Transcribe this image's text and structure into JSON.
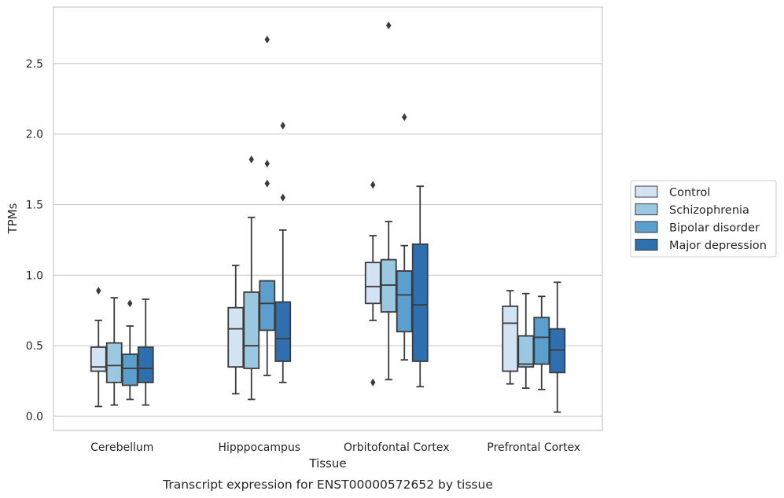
{
  "chart_data": {
    "type": "boxplot",
    "title": "",
    "caption": "Transcript expression for ENST00000572652 by tissue",
    "xlabel": "Tissue",
    "ylabel": "TPMs",
    "ylim": [
      -0.1,
      2.9
    ],
    "yticks": [
      0.0,
      0.5,
      1.0,
      1.5,
      2.0,
      2.5
    ],
    "ytick_labels": [
      "0.0",
      "0.5",
      "1.0",
      "1.5",
      "2.0",
      "2.5"
    ],
    "grid": "horizontal",
    "legend_position": "right",
    "categories": [
      "Cerebellum",
      "Hipppocampus",
      "Orbitofontal Cortex",
      "Prefrontal Cortex"
    ],
    "series": [
      {
        "name": "Control",
        "color": "#d2e3f3",
        "boxes": [
          {
            "whisker_low": 0.07,
            "q1": 0.32,
            "median": 0.35,
            "q3": 0.49,
            "whisker_high": 0.68,
            "outliers": [
              0.89
            ]
          },
          {
            "whisker_low": 0.16,
            "q1": 0.35,
            "median": 0.62,
            "q3": 0.77,
            "whisker_high": 1.07,
            "outliers": []
          },
          {
            "whisker_low": 0.68,
            "q1": 0.8,
            "median": 0.92,
            "q3": 1.09,
            "whisker_high": 1.28,
            "outliers": [
              1.64,
              0.24
            ]
          },
          {
            "whisker_low": 0.23,
            "q1": 0.32,
            "median": 0.66,
            "q3": 0.78,
            "whisker_high": 0.89,
            "outliers": []
          }
        ]
      },
      {
        "name": "Schizophrenia",
        "color": "#9ac8e0",
        "boxes": [
          {
            "whisker_low": 0.08,
            "q1": 0.24,
            "median": 0.36,
            "q3": 0.52,
            "whisker_high": 0.84,
            "outliers": []
          },
          {
            "whisker_low": 0.12,
            "q1": 0.34,
            "median": 0.5,
            "q3": 0.88,
            "whisker_high": 1.41,
            "outliers": [
              1.82
            ]
          },
          {
            "whisker_low": 0.26,
            "q1": 0.74,
            "median": 0.93,
            "q3": 1.11,
            "whisker_high": 1.38,
            "outliers": [
              2.77
            ]
          },
          {
            "whisker_low": 0.2,
            "q1": 0.35,
            "median": 0.37,
            "q3": 0.57,
            "whisker_high": 0.87,
            "outliers": []
          }
        ]
      },
      {
        "name": "Bipolar disorder",
        "color": "#5a9fcd",
        "boxes": [
          {
            "whisker_low": 0.12,
            "q1": 0.22,
            "median": 0.34,
            "q3": 0.44,
            "whisker_high": 0.64,
            "outliers": [
              0.8
            ]
          },
          {
            "whisker_low": 0.29,
            "q1": 0.61,
            "median": 0.8,
            "q3": 0.96,
            "whisker_high": 0.96,
            "outliers": [
              2.67,
              1.79,
              1.65
            ]
          },
          {
            "whisker_low": 0.4,
            "q1": 0.6,
            "median": 0.86,
            "q3": 1.03,
            "whisker_high": 1.21,
            "outliers": [
              2.12
            ]
          },
          {
            "whisker_low": 0.19,
            "q1": 0.37,
            "median": 0.56,
            "q3": 0.7,
            "whisker_high": 0.85,
            "outliers": []
          }
        ]
      },
      {
        "name": "Major depression",
        "color": "#2e6fb0",
        "boxes": [
          {
            "whisker_low": 0.08,
            "q1": 0.24,
            "median": 0.34,
            "q3": 0.49,
            "whisker_high": 0.83,
            "outliers": []
          },
          {
            "whisker_low": 0.24,
            "q1": 0.39,
            "median": 0.55,
            "q3": 0.81,
            "whisker_high": 1.32,
            "outliers": [
              2.06,
              1.55
            ]
          },
          {
            "whisker_low": 0.21,
            "q1": 0.39,
            "median": 0.79,
            "q3": 1.22,
            "whisker_high": 1.63,
            "outliers": []
          },
          {
            "whisker_low": 0.03,
            "q1": 0.31,
            "median": 0.47,
            "q3": 0.62,
            "whisker_high": 0.95,
            "outliers": []
          }
        ]
      }
    ]
  }
}
